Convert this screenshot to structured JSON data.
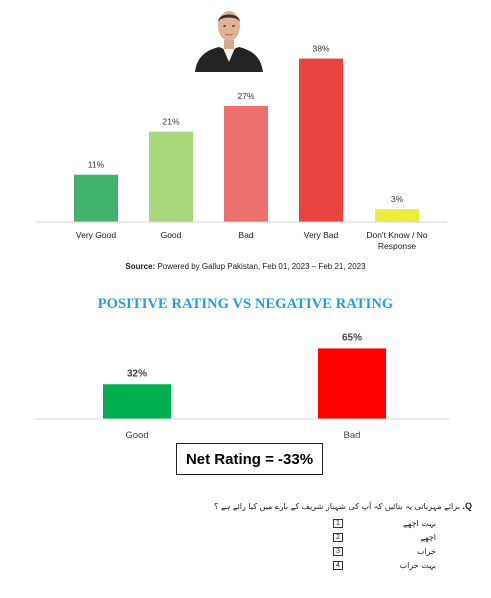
{
  "chart_data": [
    {
      "type": "bar",
      "categories": [
        "Very Good",
        "Good",
        "Bad",
        "Very Bad",
        "Don't Know / No Response"
      ],
      "values": [
        11,
        21,
        27,
        38,
        3
      ],
      "value_labels": [
        "11%",
        "21%",
        "27%",
        "38%",
        "3%"
      ],
      "colors": [
        "#41b36f",
        "#a9d67a",
        "#eb706e",
        "#ea4340",
        "#ecec3c"
      ],
      "ylim": [
        0,
        40
      ],
      "grid": false,
      "legend": "none"
    },
    {
      "type": "bar",
      "title": "POSITIVE RATING VS NEGATIVE RATING",
      "categories": [
        "Good",
        "Bad"
      ],
      "values": [
        32,
        65
      ],
      "value_labels": [
        "32%",
        "65%"
      ],
      "colors": [
        "#00b050",
        "#ff0000"
      ],
      "ylim": [
        0,
        70
      ],
      "grid": false,
      "legend": "none"
    }
  ],
  "source": {
    "label": "Source:",
    "text": "Powered by Gallup Pakistan, Feb 01, 2023 – Feb 21, 2023"
  },
  "section_title": "POSITIVE RATING VS NEGATIVE RATING",
  "net_rating": "Net Rating = -33%",
  "portrait": {
    "icon": "person-portrait-icon"
  },
  "question": {
    "label": "Q.",
    "text": "برائے مہربانی یہ بتائیں کہ آپ کی شہباز شریف کے بارے میں کیا رائے ہے ؟",
    "options": [
      {
        "num": "1",
        "text": "بہت اچھے"
      },
      {
        "num": "2",
        "text": "اچھے"
      },
      {
        "num": "3",
        "text": "خراب"
      },
      {
        "num": "4",
        "text": "بہت خراب"
      }
    ]
  }
}
